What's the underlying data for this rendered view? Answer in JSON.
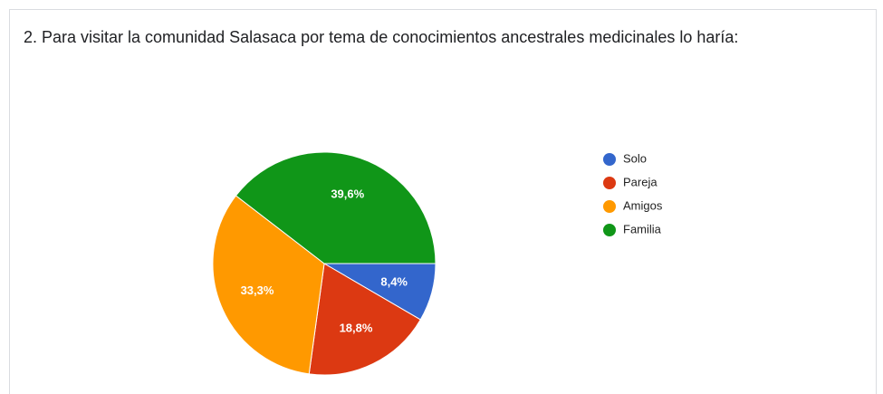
{
  "chart_data": {
    "type": "pie",
    "title": "2. Para visitar la comunidad Salasaca por tema de conocimientos ancestrales medicinales lo haría:",
    "categories": [
      "Solo",
      "Pareja",
      "Amigos",
      "Familia"
    ],
    "values": [
      8.4,
      18.8,
      33.3,
      39.6
    ],
    "value_labels": [
      "8,4%",
      "18,8%",
      "33,3%",
      "39,6%"
    ],
    "colors": [
      "#3366cc",
      "#dc3912",
      "#ff9900",
      "#109618"
    ],
    "legend": "right"
  }
}
